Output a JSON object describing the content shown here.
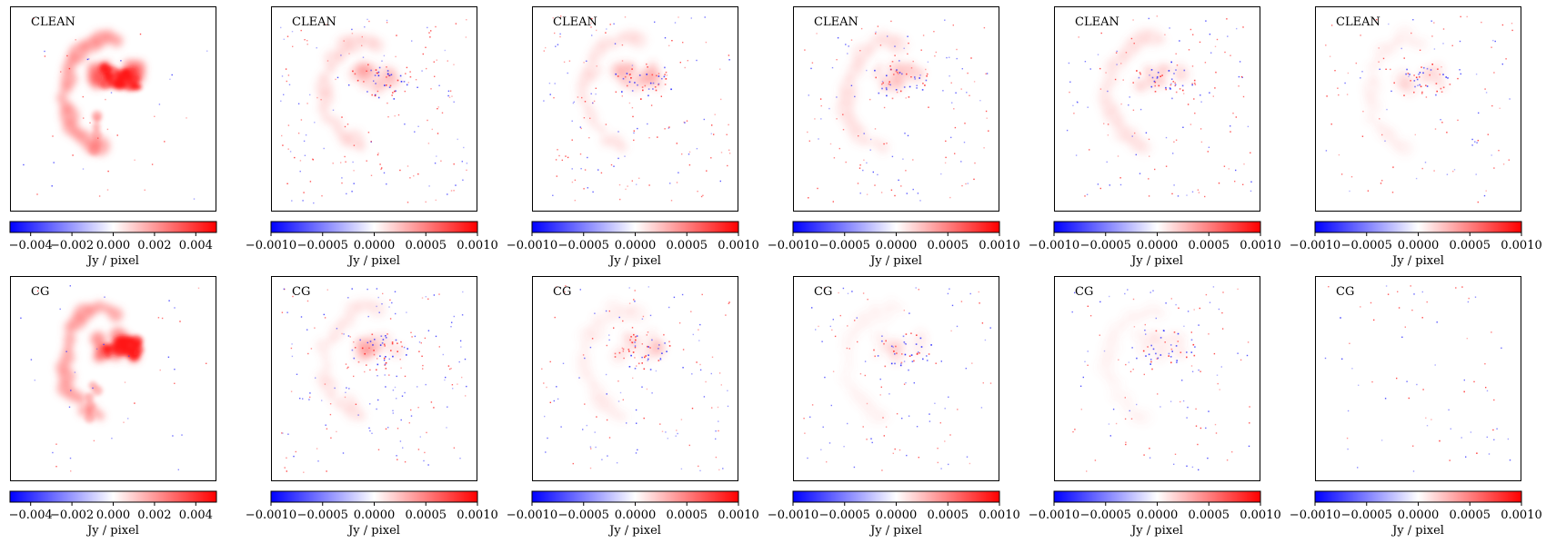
{
  "chart_data": {
    "type": "heatmap",
    "grid": false,
    "colormap": {
      "name": "bwr",
      "negative": "#0000ff",
      "zero": "#ffffff",
      "positive": "#ff0000"
    },
    "rows": [
      {
        "label": "CLEAN",
        "panels": [
          {
            "label": "CLEAN",
            "colorbar": {
              "vmin": -0.005,
              "vmax": 0.005,
              "ticks": [
                -0.004,
                -0.002,
                0.0,
                0.002,
                0.004
              ],
              "tick_labels": [
                "−0.004",
                "−0.002",
                "0.000",
                "0.002",
                "0.004"
              ],
              "label": "Jy / pixel"
            }
          },
          {
            "label": "CLEAN",
            "colorbar": {
              "vmin": -0.001,
              "vmax": 0.001,
              "ticks": [
                -0.001,
                -0.0005,
                0.0,
                0.0005,
                0.001
              ],
              "tick_labels": [
                "−0.0010",
                "−0.0005",
                "0.0000",
                "0.0005",
                "0.0010"
              ],
              "label": "Jy / pixel"
            }
          },
          {
            "label": "CLEAN",
            "colorbar": {
              "vmin": -0.001,
              "vmax": 0.001,
              "ticks": [
                -0.001,
                -0.0005,
                0.0,
                0.0005,
                0.001
              ],
              "tick_labels": [
                "−0.0010",
                "−0.0005",
                "0.0000",
                "0.0005",
                "0.0010"
              ],
              "label": "Jy / pixel"
            }
          },
          {
            "label": "CLEAN",
            "colorbar": {
              "vmin": -0.001,
              "vmax": 0.001,
              "ticks": [
                -0.001,
                -0.0005,
                0.0,
                0.0005,
                0.001
              ],
              "tick_labels": [
                "−0.0010",
                "−0.0005",
                "0.0000",
                "0.0005",
                "0.0010"
              ],
              "label": "Jy / pixel"
            }
          },
          {
            "label": "CLEAN",
            "colorbar": {
              "vmin": -0.001,
              "vmax": 0.001,
              "ticks": [
                -0.001,
                -0.0005,
                0.0,
                0.0005,
                0.001
              ],
              "tick_labels": [
                "−0.0010",
                "−0.0005",
                "0.0000",
                "0.0005",
                "0.0010"
              ],
              "label": "Jy / pixel"
            }
          },
          {
            "label": "CLEAN",
            "colorbar": {
              "vmin": -0.001,
              "vmax": 0.001,
              "ticks": [
                -0.001,
                -0.0005,
                0.0,
                0.0005,
                0.001
              ],
              "tick_labels": [
                "−0.0010",
                "−0.0005",
                "0.0000",
                "0.0005",
                "0.0010"
              ],
              "label": "Jy / pixel"
            }
          }
        ]
      },
      {
        "label": "CG",
        "panels": [
          {
            "label": "CG",
            "colorbar": {
              "vmin": -0.005,
              "vmax": 0.005,
              "ticks": [
                -0.004,
                -0.002,
                0.0,
                0.002,
                0.004
              ],
              "tick_labels": [
                "−0.004",
                "−0.002",
                "0.000",
                "0.002",
                "0.004"
              ],
              "label": "Jy / pixel"
            }
          },
          {
            "label": "CG",
            "colorbar": {
              "vmin": -0.001,
              "vmax": 0.001,
              "ticks": [
                -0.001,
                -0.0005,
                0.0,
                0.0005,
                0.001
              ],
              "tick_labels": [
                "−0.0010",
                "−0.0005",
                "0.0000",
                "0.0005",
                "0.0010"
              ],
              "label": "Jy / pixel"
            }
          },
          {
            "label": "CG",
            "colorbar": {
              "vmin": -0.001,
              "vmax": 0.001,
              "ticks": [
                -0.001,
                -0.0005,
                0.0,
                0.0005,
                0.001
              ],
              "tick_labels": [
                "−0.0010",
                "−0.0005",
                "0.0000",
                "0.0005",
                "0.0010"
              ],
              "label": "Jy / pixel"
            }
          },
          {
            "label": "CG",
            "colorbar": {
              "vmin": -0.001,
              "vmax": 0.001,
              "ticks": [
                -0.001,
                -0.0005,
                0.0,
                0.0005,
                0.001
              ],
              "tick_labels": [
                "−0.0010",
                "−0.0005",
                "0.0000",
                "0.0005",
                "0.0010"
              ],
              "label": "Jy / pixel"
            }
          },
          {
            "label": "CG",
            "colorbar": {
              "vmin": -0.001,
              "vmax": 0.001,
              "ticks": [
                -0.001,
                -0.0005,
                0.0,
                0.0005,
                0.001
              ],
              "tick_labels": [
                "−0.0010",
                "−0.0005",
                "0.0000",
                "0.0005",
                "0.0010"
              ],
              "label": "Jy / pixel"
            }
          },
          {
            "label": "CG",
            "colorbar": {
              "vmin": -0.001,
              "vmax": 0.001,
              "ticks": [
                -0.001,
                -0.0005,
                0.0,
                0.0005,
                0.001
              ],
              "tick_labels": [
                "−0.0010",
                "−0.0005",
                "0.0000",
                "0.0005",
                "0.0010"
              ],
              "label": "Jy / pixel"
            }
          }
        ]
      }
    ]
  }
}
